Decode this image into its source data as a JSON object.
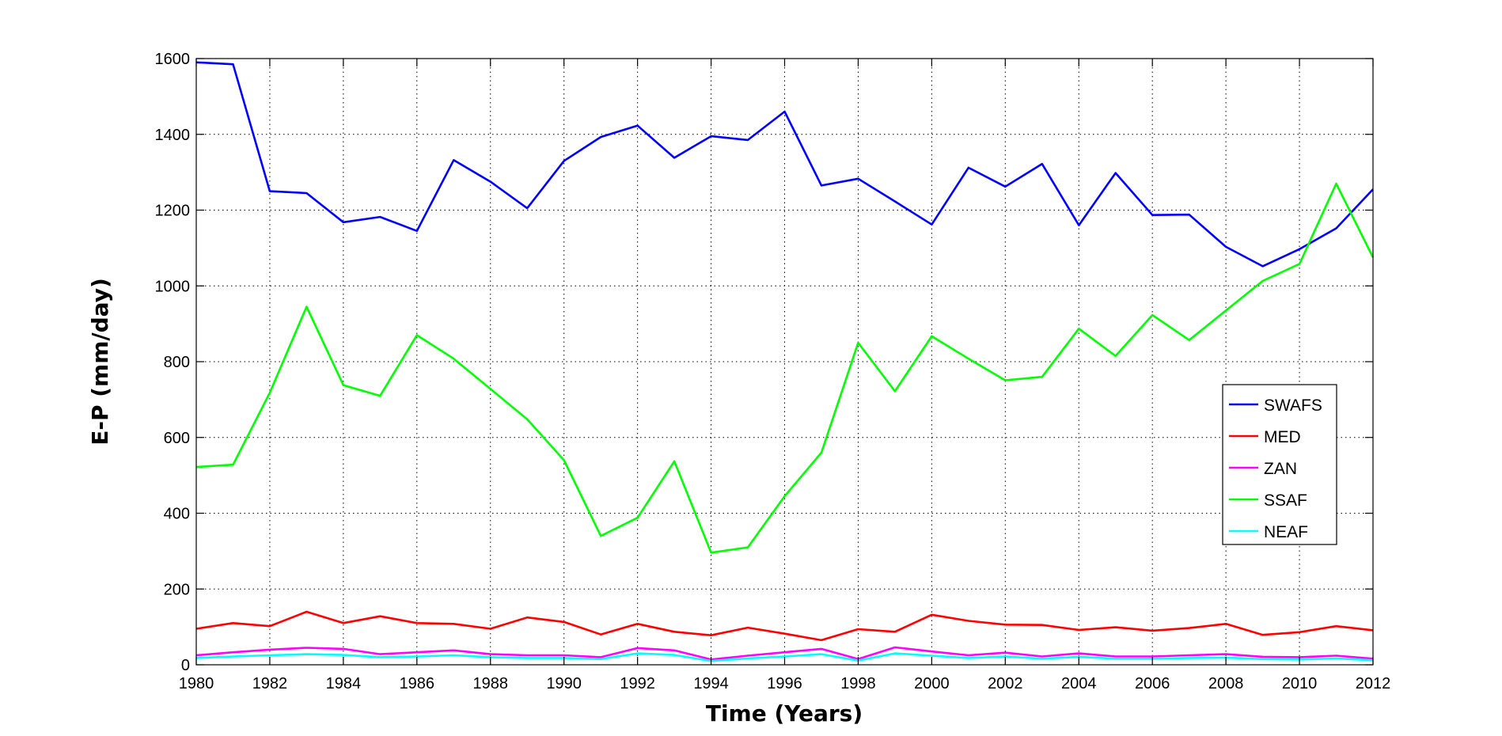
{
  "chart_data": {
    "type": "line",
    "title": "",
    "xlabel": "Time (Years)",
    "ylabel": "E-P (mm/day)",
    "xlim": [
      1980,
      2012
    ],
    "ylim": [
      0,
      1600
    ],
    "xticks": [
      1980,
      1982,
      1984,
      1986,
      1988,
      1990,
      1992,
      1994,
      1996,
      1998,
      2000,
      2002,
      2004,
      2006,
      2008,
      2010,
      2012
    ],
    "yticks": [
      0,
      200,
      400,
      600,
      800,
      1000,
      1200,
      1400,
      1600
    ],
    "grid": true,
    "legend_position": "right",
    "x": [
      1980,
      1981,
      1982,
      1983,
      1984,
      1985,
      1986,
      1987,
      1988,
      1989,
      1990,
      1991,
      1992,
      1993,
      1994,
      1995,
      1996,
      1997,
      1998,
      1999,
      2000,
      2001,
      2002,
      2003,
      2004,
      2005,
      2006,
      2007,
      2008,
      2009,
      2010,
      2011,
      2012
    ],
    "series": [
      {
        "name": "SWAFS",
        "color": "#0000ff",
        "values": [
          1590,
          1585,
          1250,
          1245,
          1168,
          1182,
          1145,
          1332,
          1275,
          1205,
          1330,
          1393,
          1423,
          1338,
          1395,
          1385,
          1460,
          1265,
          1283,
          1223,
          1162,
          1312,
          1262,
          1322,
          1160,
          1298,
          1187,
          1188,
          1103,
          1052,
          1097,
          1152,
          1255
        ]
      },
      {
        "name": "MED",
        "color": "#ff0000",
        "values": [
          95,
          110,
          102,
          140,
          110,
          128,
          110,
          108,
          95,
          125,
          113,
          80,
          108,
          87,
          78,
          98,
          82,
          65,
          94,
          87,
          132,
          116,
          106,
          105,
          92,
          99,
          90,
          97,
          108,
          79,
          86,
          102,
          91
        ]
      },
      {
        "name": "ZAN",
        "color": "#ff00ff",
        "values": [
          25,
          33,
          40,
          45,
          42,
          28,
          33,
          38,
          28,
          25,
          25,
          20,
          44,
          38,
          14,
          24,
          33,
          42,
          15,
          46,
          35,
          25,
          32,
          22,
          30,
          22,
          22,
          25,
          28,
          21,
          20,
          24,
          16
        ]
      },
      {
        "name": "SSAF",
        "color": "#00ff00",
        "values": [
          522,
          528,
          718,
          945,
          738,
          710,
          870,
          808,
          728,
          648,
          540,
          340,
          388,
          537,
          296,
          310,
          445,
          560,
          850,
          722,
          867,
          808,
          751,
          760,
          887,
          815,
          923,
          857,
          935,
          1013,
          1058,
          1270,
          1075
        ]
      },
      {
        "name": "NEAF",
        "color": "#00ffff",
        "values": [
          18,
          22,
          25,
          28,
          26,
          20,
          22,
          25,
          20,
          18,
          18,
          15,
          30,
          26,
          10,
          17,
          22,
          28,
          11,
          30,
          24,
          18,
          22,
          16,
          21,
          16,
          16,
          18,
          19,
          15,
          14,
          17,
          12
        ]
      }
    ]
  }
}
